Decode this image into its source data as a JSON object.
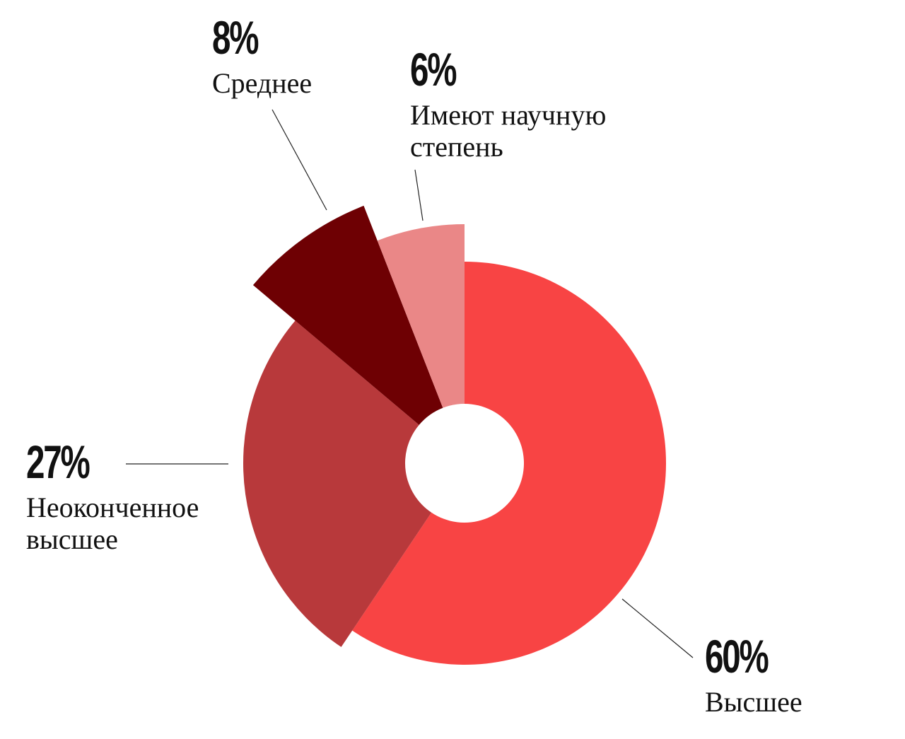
{
  "chart_data": {
    "type": "pie",
    "categories": [
      "Высшее",
      "Неоконченное высшее",
      "Среднее",
      "Имеют научную степень"
    ],
    "values": [
      60,
      27,
      8,
      6
    ],
    "value_labels": [
      "60%",
      "27%",
      "8%",
      "6%"
    ],
    "colors": [
      "#f84444",
      "#b8393b",
      "#6e0003",
      "#ea8787"
    ]
  }
}
